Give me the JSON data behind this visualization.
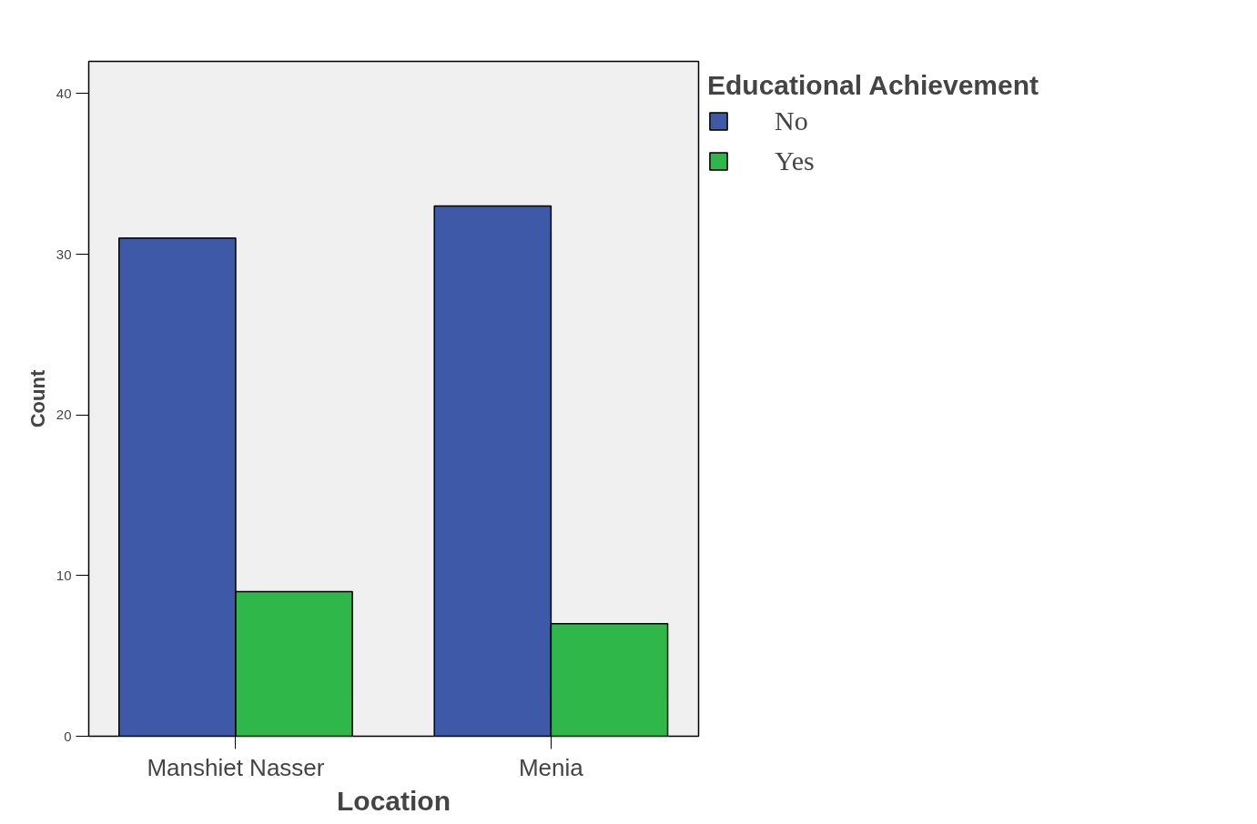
{
  "chart_data": {
    "type": "bar",
    "xlabel": "Location",
    "ylabel": "Count",
    "legend_title": "Educational Achievement",
    "categories": [
      "Manshiet Nasser",
      "Menia"
    ],
    "series": [
      {
        "name": "No",
        "color": "#3f59a9",
        "values": [
          31,
          33
        ]
      },
      {
        "name": "Yes",
        "color": "#30b74a",
        "values": [
          9,
          7
        ]
      }
    ],
    "ylim": [
      0,
      42
    ],
    "yticks": [
      0,
      10,
      20,
      30,
      40
    ],
    "grid": false,
    "legend": "top right"
  }
}
